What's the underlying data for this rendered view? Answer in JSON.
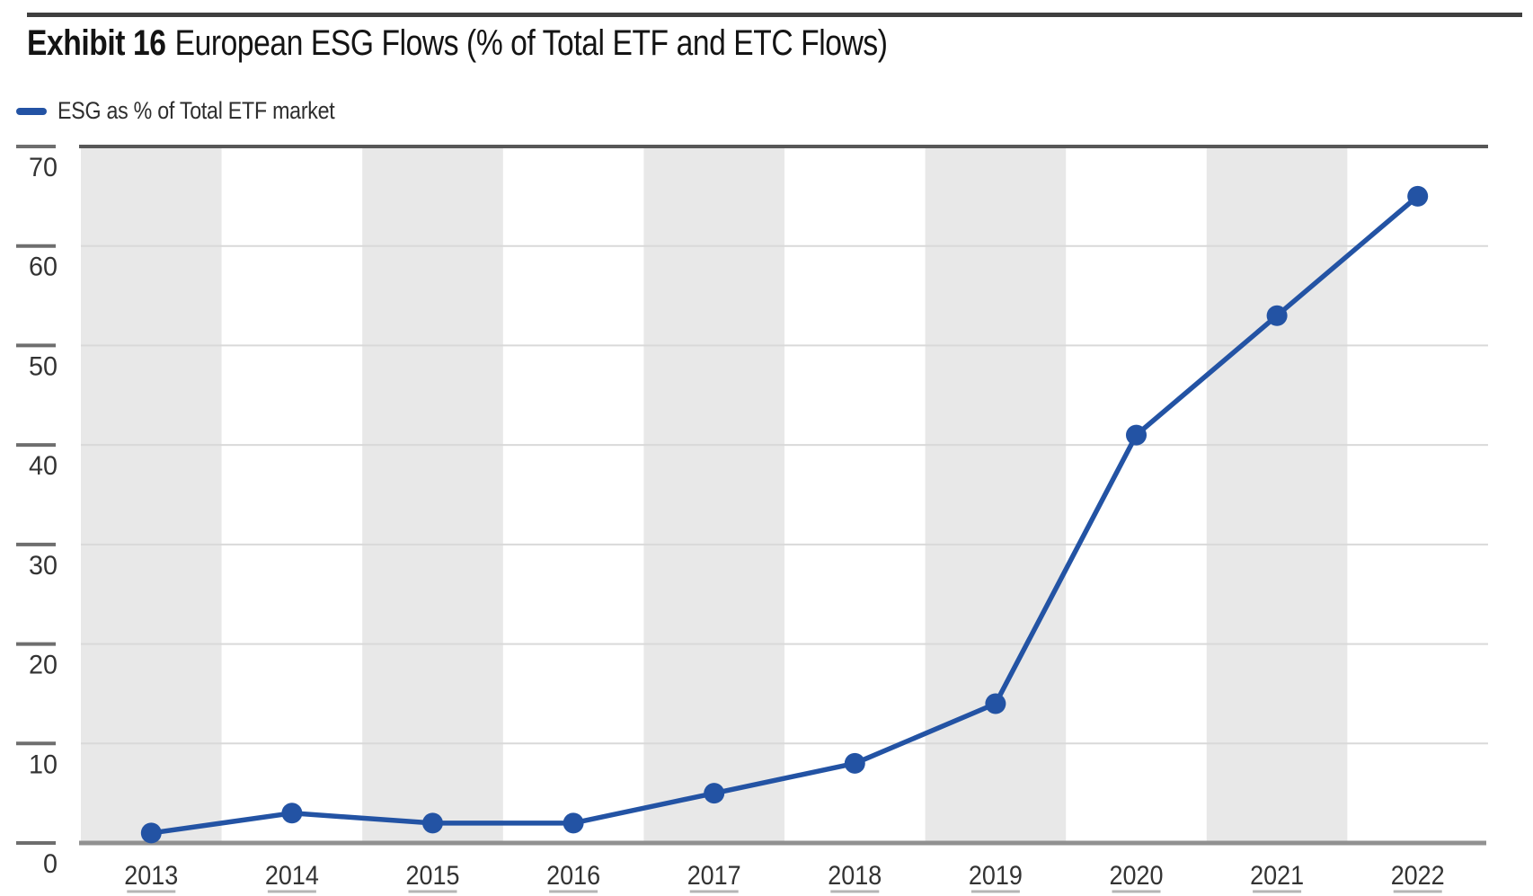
{
  "exhibit": {
    "label": "Exhibit 16",
    "title": "European ESG Flows (% of Total ETF and ETC Flows)"
  },
  "legend": {
    "label": "ESG as % of Total ETF market"
  },
  "chart_data": {
    "type": "line",
    "title": "European ESG Flows (% of Total ETF and ETC Flows)",
    "categories": [
      "2013",
      "2014",
      "2015",
      "2016",
      "2017",
      "2018",
      "2019",
      "2020",
      "2021",
      "2022"
    ],
    "series": [
      {
        "name": "ESG as % of Total ETF market",
        "values": [
          1,
          3,
          2,
          2,
          5,
          8,
          14,
          41,
          53,
          65
        ]
      }
    ],
    "ylabel": "",
    "xlabel": "",
    "ylim": [
      0,
      70
    ],
    "yticks": [
      0,
      10,
      20,
      30,
      40,
      50,
      60,
      70
    ],
    "grid": "horizontal",
    "background_bands": "alternating vertical year bands, shaded on odd years starting 2013",
    "legend_position": "top-left",
    "colors": {
      "line": "#2353a4",
      "marker": "#2353a4",
      "band": "#e8e8e8",
      "gridline": "#d9d9d9",
      "plot_top_border": "#575757",
      "x_axis_line": "#919191",
      "y_tick": "#6e6e6e",
      "axis_label_text": "#333333",
      "bottom_dash": "#b5b5b5"
    }
  }
}
